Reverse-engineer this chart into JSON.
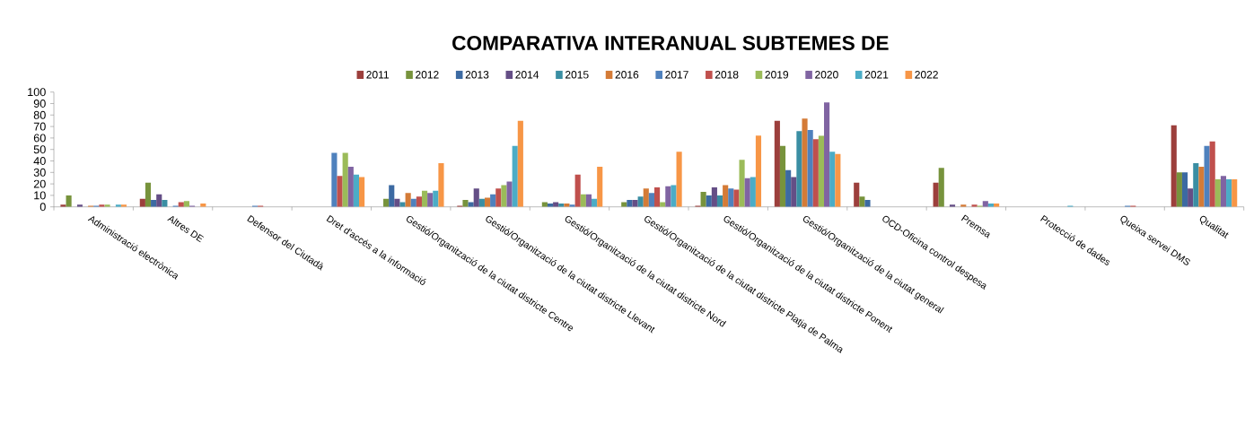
{
  "chart_data": {
    "type": "bar",
    "title": "COMPARATIVA INTERANUAL SUBTEMES DE",
    "categories": [
      "Administració electrònica",
      "Altres DE",
      "Defensor del Ciutadà",
      "Dret d'accés a la informació",
      "Gestió/Organització de la ciutat districte Centre",
      "Gestió/Organització de la ciutat districte Llevant",
      "Gestió/Organització de la ciutat districte Nord",
      "Gestió/Organització de la ciutat districte Platja de Palma",
      "Gestió/Organització de la ciutat districte Ponent",
      "Gestió/Organització de la ciutat general",
      "OCD-Oficina control despesa",
      "Premsa",
      "Protecció de dades",
      "Queixa servei DMS",
      "Qualitat"
    ],
    "series": [
      {
        "name": "2011",
        "color": "#9c3f3c",
        "values": [
          2,
          7,
          0,
          0,
          0,
          1,
          0,
          0,
          1,
          75,
          21,
          21,
          0,
          0,
          71
        ]
      },
      {
        "name": "2012",
        "color": "#77933c",
        "values": [
          10,
          21,
          0,
          0,
          7,
          6,
          4,
          4,
          13,
          53,
          9,
          34,
          0,
          0,
          30
        ]
      },
      {
        "name": "2013",
        "color": "#3c6aa2",
        "values": [
          0,
          6,
          0,
          0,
          19,
          4,
          3,
          6,
          10,
          32,
          6,
          0,
          0,
          0,
          30
        ]
      },
      {
        "name": "2014",
        "color": "#644e86",
        "values": [
          2,
          11,
          0,
          0,
          7,
          16,
          4,
          6,
          17,
          26,
          0,
          2,
          0,
          0,
          16
        ]
      },
      {
        "name": "2015",
        "color": "#3a8ea3",
        "values": [
          0,
          6,
          0,
          0,
          4,
          7,
          3,
          9,
          10,
          66,
          0,
          0,
          0,
          0,
          38
        ]
      },
      {
        "name": "2016",
        "color": "#d47b37",
        "values": [
          1,
          0,
          0,
          0,
          12,
          8,
          3,
          16,
          19,
          77,
          0,
          2,
          0,
          0,
          35
        ]
      },
      {
        "name": "2017",
        "color": "#4f81bd",
        "values": [
          1,
          1,
          1,
          47,
          7,
          11,
          2,
          12,
          16,
          67,
          0,
          0,
          0,
          1,
          53
        ]
      },
      {
        "name": "2018",
        "color": "#c0504d",
        "values": [
          2,
          4,
          1,
          27,
          9,
          16,
          28,
          17,
          15,
          59,
          0,
          2,
          0,
          1,
          57
        ]
      },
      {
        "name": "2019",
        "color": "#9bbb59",
        "values": [
          2,
          5,
          0,
          47,
          14,
          19,
          11,
          4,
          41,
          62,
          0,
          1,
          0,
          0,
          24
        ]
      },
      {
        "name": "2020",
        "color": "#8064a2",
        "values": [
          0,
          1,
          0,
          35,
          12,
          22,
          11,
          18,
          25,
          91,
          0,
          5,
          0,
          0,
          27
        ]
      },
      {
        "name": "2021",
        "color": "#4bacc6",
        "values": [
          2,
          0,
          0,
          28,
          14,
          53,
          7,
          19,
          26,
          48,
          0,
          3,
          1,
          0,
          24
        ]
      },
      {
        "name": "2022",
        "color": "#f79646",
        "values": [
          2,
          3,
          0,
          26,
          38,
          75,
          35,
          48,
          62,
          46,
          0,
          3,
          0,
          0,
          24
        ]
      }
    ],
    "ylim": [
      0,
      100
    ],
    "yticks": [
      0,
      10,
      20,
      30,
      40,
      50,
      60,
      70,
      80,
      90,
      100
    ],
    "legend": "top"
  }
}
